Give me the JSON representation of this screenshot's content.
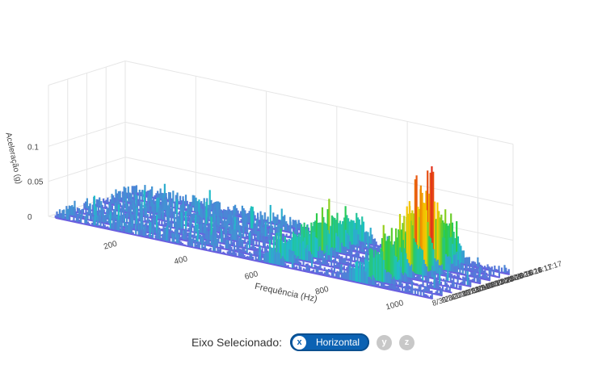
{
  "chart_data": {
    "type": "3d-waterfall",
    "zlabel": "Aceleração (g)",
    "xlabel": "Frequência (Hz)",
    "xlim": [
      0,
      1100
    ],
    "zlim": [
      0,
      0.15
    ],
    "x_ticks": [
      200,
      400,
      600,
      800,
      1000
    ],
    "z_ticks": [
      0,
      0.05,
      0.1
    ],
    "z_tick_labels": [
      "0",
      "0.05",
      "0.1"
    ],
    "colorscale": [
      "#6a5fe0",
      "#1ec0c8",
      "#2ecc40",
      "#f5d000",
      "#f09000",
      "#e02020"
    ],
    "series": [
      {
        "name": "8/3/2020 11:16",
        "peaks": [
          {
            "x": 640,
            "y": 0.02,
            "w": 25
          },
          {
            "x": 880,
            "y": 0.03,
            "w": 30
          }
        ]
      },
      {
        "name": "9/3/2020 11:16",
        "peaks": [
          {
            "x": 640,
            "y": 0.035,
            "w": 28
          },
          {
            "x": 900,
            "y": 0.05,
            "w": 35
          }
        ]
      },
      {
        "name": "11/3/2020 11:17",
        "peaks": [
          {
            "x": 650,
            "y": 0.045,
            "w": 30
          },
          {
            "x": 905,
            "y": 0.06,
            "w": 35
          }
        ]
      },
      {
        "name": "12/3/2020 11:28",
        "peaks": [
          {
            "x": 650,
            "y": 0.055,
            "w": 30
          },
          {
            "x": 905,
            "y": 0.07,
            "w": 35
          }
        ]
      },
      {
        "name": "13/3/2020 11:16",
        "peaks": [
          {
            "x": 660,
            "y": 0.06,
            "w": 30
          },
          {
            "x": 910,
            "y": 0.09,
            "w": 40
          }
        ]
      },
      {
        "name": "14/3/2020 11:16",
        "peaks": [
          {
            "x": 660,
            "y": 0.055,
            "w": 30
          },
          {
            "x": 910,
            "y": 0.13,
            "w": 40
          }
        ]
      },
      {
        "name": "15/3/2020 11:16",
        "peaks": [
          {
            "x": 660,
            "y": 0.05,
            "w": 30
          },
          {
            "x": 915,
            "y": 0.15,
            "w": 40
          }
        ]
      },
      {
        "name": "16/3/2020 11:17",
        "peaks": [
          {
            "x": 660,
            "y": 0.045,
            "w": 30
          },
          {
            "x": 915,
            "y": 0.09,
            "w": 40
          }
        ]
      },
      {
        "name": "17/3/2020 11:17",
        "peaks": [
          {
            "x": 660,
            "y": 0.04,
            "w": 30
          },
          {
            "x": 915,
            "y": 0.06,
            "w": 40
          }
        ]
      }
    ],
    "baseline_noise": 0.012
  },
  "axis_selector": {
    "label": "Eixo Selecionado:",
    "selected_key": "x",
    "selected_label": "Horizontal",
    "options": [
      {
        "key": "y"
      },
      {
        "key": "z"
      }
    ]
  }
}
